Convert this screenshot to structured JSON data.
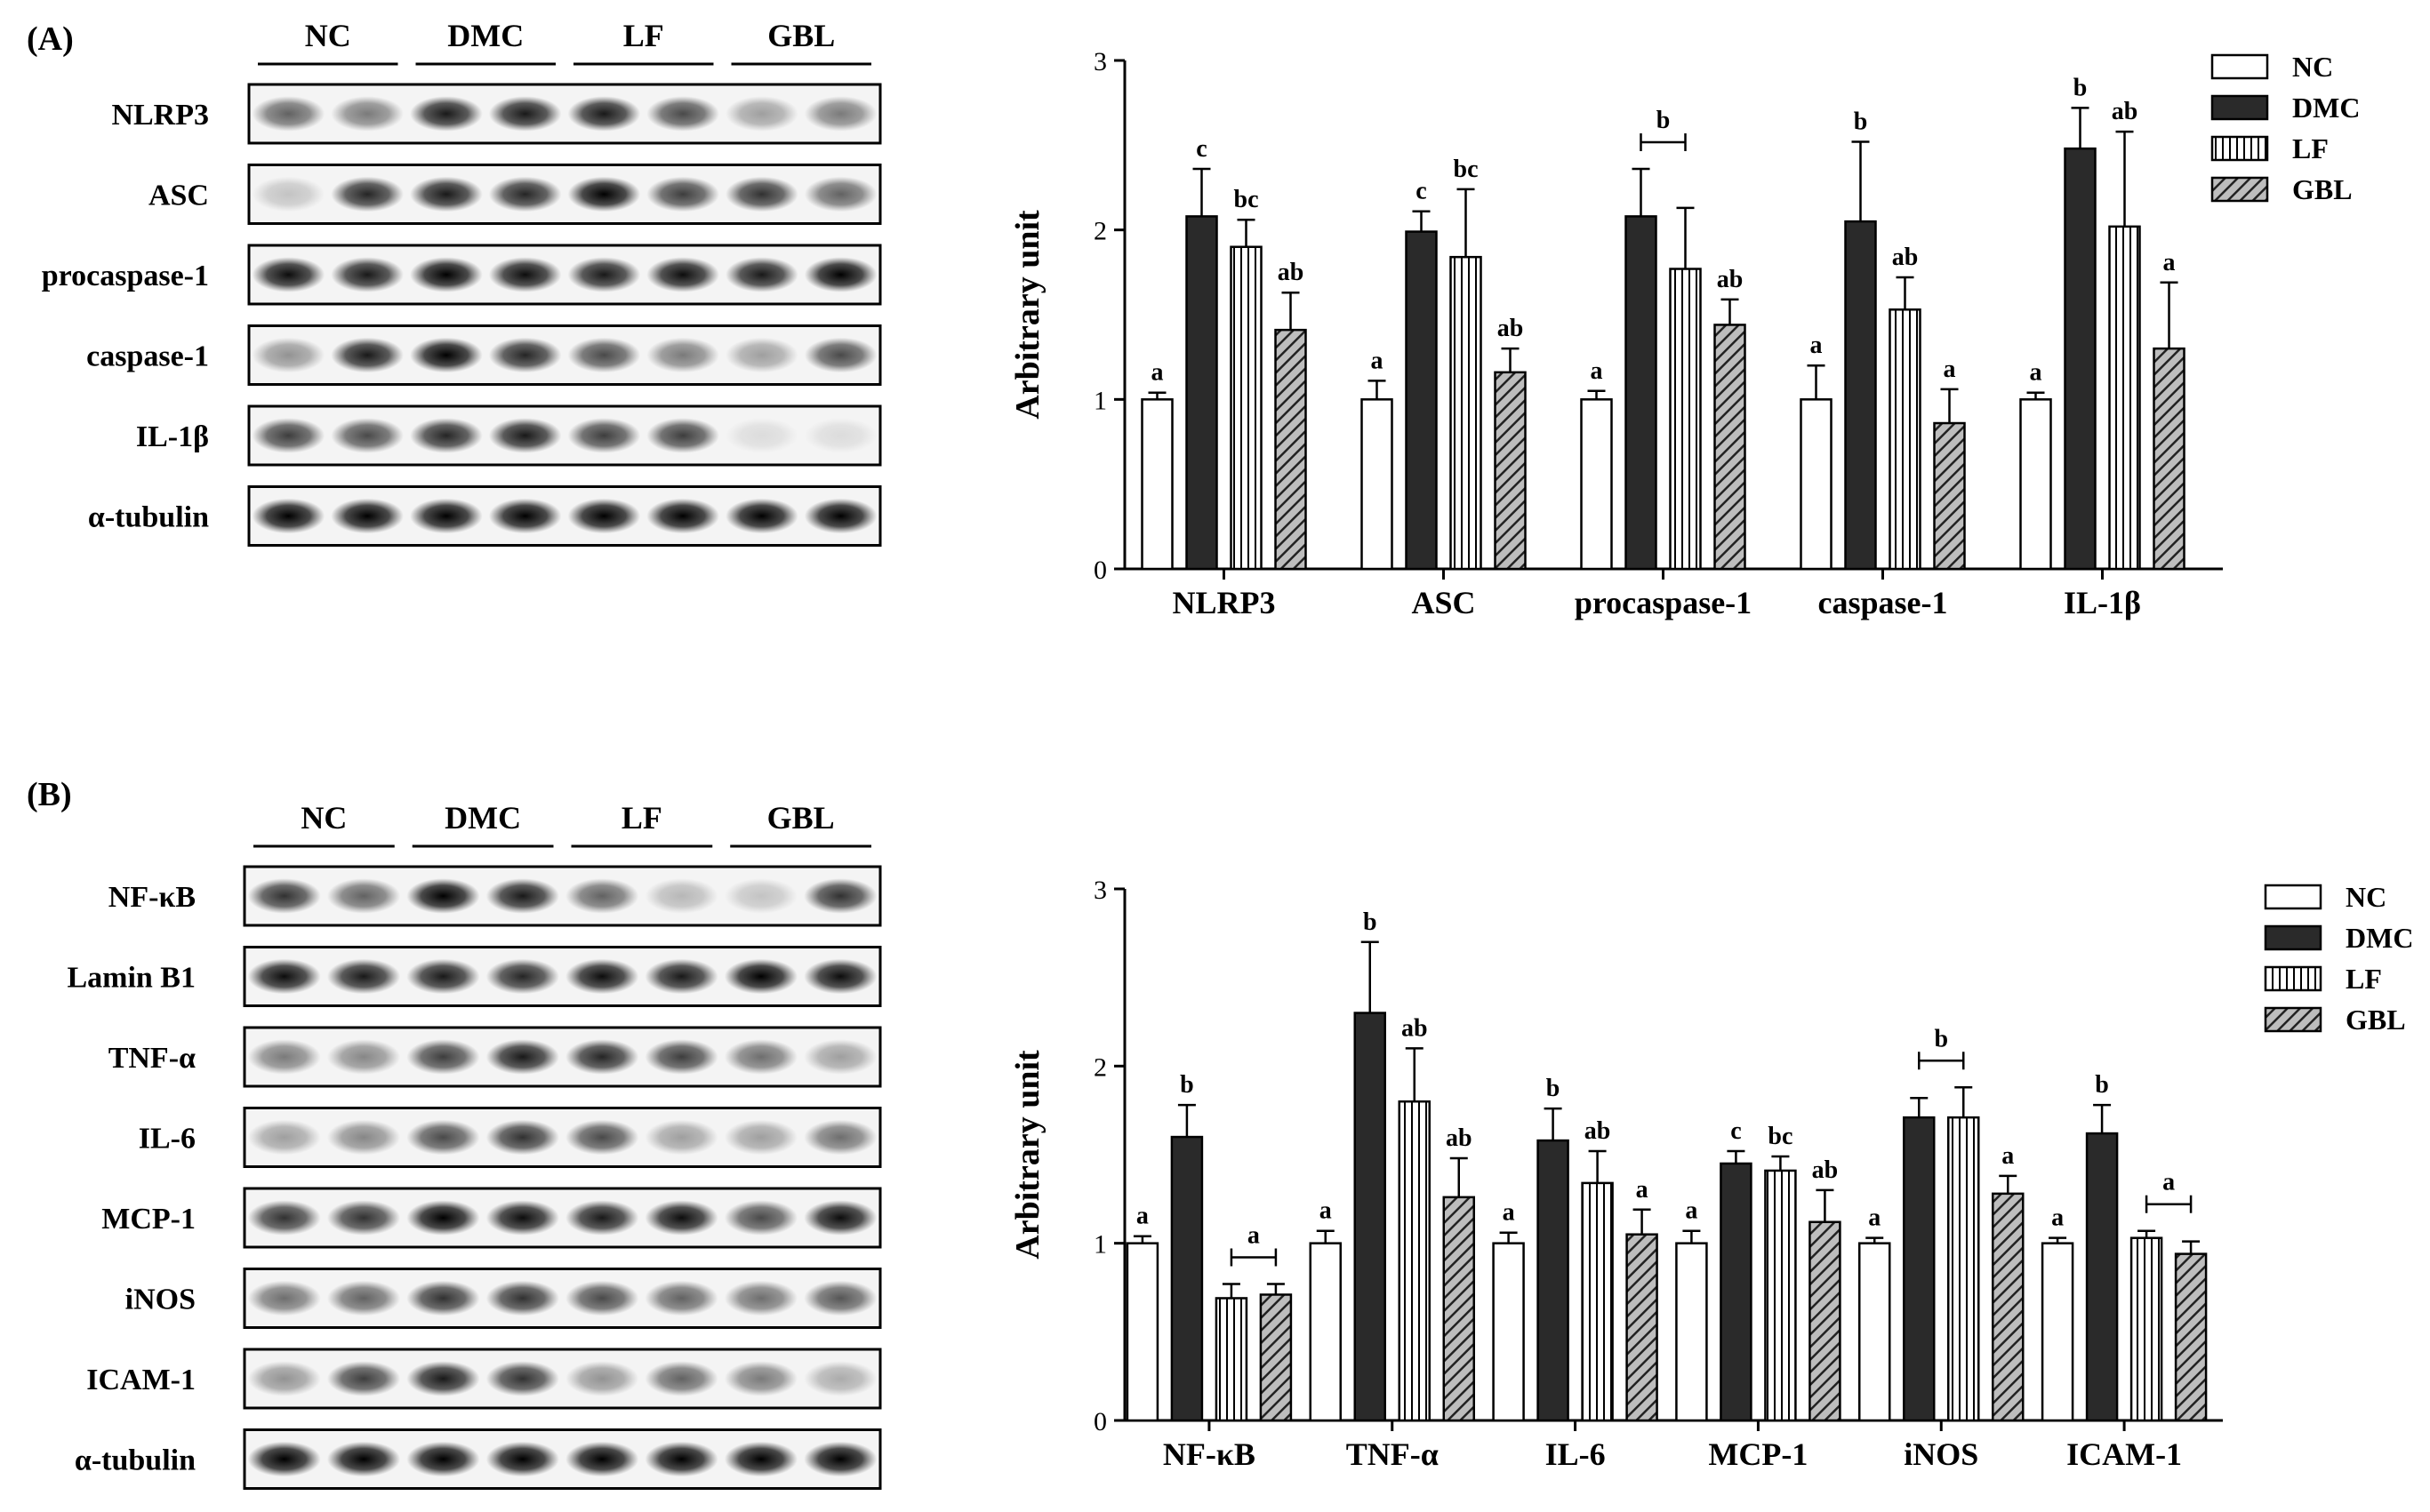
{
  "panels": [
    {
      "label": "(A)",
      "blot": {
        "groups": [
          "NC",
          "DMC",
          "LF",
          "GBL"
        ],
        "rows": [
          "NLRP3",
          "ASC",
          "procaspase-1",
          "caspase-1",
          "IL-1β",
          "α-tubulin"
        ]
      }
    },
    {
      "label": "(B)",
      "blot": {
        "groups": [
          "NC",
          "DMC",
          "LF",
          "GBL"
        ],
        "rows": [
          "NF-κB",
          "Lamin B1",
          "TNF-α",
          "IL-6",
          "MCP-1",
          "iNOS",
          "ICAM-1",
          "α-tubulin"
        ]
      }
    }
  ],
  "colors": {
    "NC": "#ffffff",
    "DMC": "#2a2a2a",
    "LF": "#ffffff",
    "GBL": "#8a8a8a",
    "stroke": "#000000"
  },
  "chart_data": [
    {
      "type": "bar",
      "title": "",
      "xlabel": "",
      "ylabel": "Arbitrary unit",
      "ylim": [
        0,
        3
      ],
      "yticks": [
        "0",
        "1",
        "2",
        "3"
      ],
      "legend_position": "top-right",
      "categories": [
        "NLRP3",
        "ASC",
        "procaspase-1",
        "caspase-1",
        "IL-1β"
      ],
      "series": [
        {
          "name": "NC",
          "pattern": "open",
          "values": [
            1.0,
            1.0,
            1.0,
            1.0,
            1.0
          ],
          "errors": [
            0.04,
            0.11,
            0.05,
            0.2,
            0.04
          ],
          "labels": [
            "a",
            "a",
            "a",
            "a",
            "a"
          ]
        },
        {
          "name": "DMC",
          "pattern": "solid",
          "values": [
            2.08,
            1.99,
            2.08,
            2.05,
            2.48
          ],
          "errors": [
            0.28,
            0.12,
            0.28,
            0.47,
            0.24
          ],
          "labels": [
            "c",
            "c",
            "",
            "b",
            "b"
          ]
        },
        {
          "name": "LF",
          "pattern": "vlines",
          "values": [
            1.9,
            1.84,
            1.77,
            1.53,
            2.02
          ],
          "errors": [
            0.16,
            0.4,
            0.36,
            0.19,
            0.56
          ],
          "labels": [
            "bc",
            "bc",
            "",
            "ab",
            "ab"
          ]
        },
        {
          "name": "GBL",
          "pattern": "hatched",
          "values": [
            1.41,
            1.16,
            1.44,
            0.86,
            1.3
          ],
          "errors": [
            0.22,
            0.14,
            0.15,
            0.2,
            0.39
          ],
          "labels": [
            "ab",
            "ab",
            "ab",
            "a",
            "a"
          ]
        }
      ],
      "brackets": [
        {
          "category": 2,
          "from_series": 1,
          "to_series": 2,
          "label": "b"
        }
      ]
    },
    {
      "type": "bar",
      "title": "",
      "xlabel": "",
      "ylabel": "Arbitrary unit",
      "ylim": [
        0,
        3
      ],
      "yticks": [
        "0",
        "1",
        "2",
        "3"
      ],
      "legend_position": "top-right",
      "categories": [
        "NF-κB",
        "TNF-α",
        "IL-6",
        "MCP-1",
        "iNOS",
        "ICAM-1"
      ],
      "series": [
        {
          "name": "NC",
          "pattern": "open",
          "values": [
            1.0,
            1.0,
            1.0,
            1.0,
            1.0,
            1.0
          ],
          "errors": [
            0.04,
            0.07,
            0.06,
            0.07,
            0.03,
            0.03
          ],
          "labels": [
            "a",
            "a",
            "a",
            "a",
            "a",
            "a"
          ]
        },
        {
          "name": "DMC",
          "pattern": "solid",
          "values": [
            1.6,
            2.3,
            1.58,
            1.45,
            1.71,
            1.62
          ],
          "errors": [
            0.18,
            0.4,
            0.18,
            0.07,
            0.11,
            0.16
          ],
          "labels": [
            "b",
            "b",
            "b",
            "c",
            "",
            "b"
          ]
        },
        {
          "name": "LF",
          "pattern": "vlines",
          "values": [
            0.69,
            1.8,
            1.34,
            1.41,
            1.71,
            1.03
          ],
          "errors": [
            0.08,
            0.3,
            0.18,
            0.08,
            0.17,
            0.04
          ],
          "labels": [
            "",
            "ab",
            "ab",
            "bc",
            "",
            ""
          ]
        },
        {
          "name": "GBL",
          "pattern": "hatched",
          "values": [
            0.71,
            1.26,
            1.05,
            1.12,
            1.28,
            0.94
          ],
          "errors": [
            0.06,
            0.22,
            0.14,
            0.18,
            0.1,
            0.07
          ],
          "labels": [
            "",
            "ab",
            "a",
            "ab",
            "a",
            ""
          ]
        }
      ],
      "brackets": [
        {
          "category": 0,
          "from_series": 2,
          "to_series": 3,
          "label": "a"
        },
        {
          "category": 4,
          "from_series": 1,
          "to_series": 2,
          "label": "b"
        },
        {
          "category": 5,
          "from_series": 2,
          "to_series": 3,
          "label": "a"
        }
      ]
    }
  ]
}
